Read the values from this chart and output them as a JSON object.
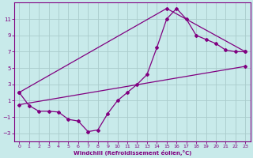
{
  "xlabel": "Windchill (Refroidissement éolien,°C)",
  "bg_color": "#c8eaea",
  "line_color": "#800080",
  "grid_color": "#aacccc",
  "xlim": [
    -0.5,
    23.5
  ],
  "ylim": [
    -4,
    13
  ],
  "xticks": [
    0,
    1,
    2,
    3,
    4,
    5,
    6,
    7,
    8,
    9,
    10,
    11,
    12,
    13,
    14,
    15,
    16,
    17,
    18,
    19,
    20,
    21,
    22,
    23
  ],
  "yticks": [
    -3,
    -1,
    1,
    3,
    5,
    7,
    9,
    11
  ],
  "line1_x": [
    0,
    1,
    2,
    3,
    4,
    5,
    6,
    7,
    8,
    9,
    10,
    11,
    12,
    13,
    14,
    15,
    16,
    17,
    18,
    19,
    20,
    21,
    22,
    23
  ],
  "line1_y": [
    2.0,
    0.4,
    -0.3,
    -0.3,
    -0.4,
    -1.3,
    -1.5,
    -2.8,
    -2.6,
    -0.6,
    1.0,
    2.0,
    3.0,
    4.2,
    7.5,
    11.0,
    12.3,
    11.0,
    9.0,
    8.5,
    8.0,
    7.2,
    7.0,
    7.0
  ],
  "line2_x": [
    0,
    23
  ],
  "line2_y": [
    0.5,
    5.2
  ],
  "line3_x": [
    0,
    15,
    23
  ],
  "line3_y": [
    2.0,
    12.3,
    7.0
  ],
  "marker_size": 2.0,
  "line_width": 0.9
}
